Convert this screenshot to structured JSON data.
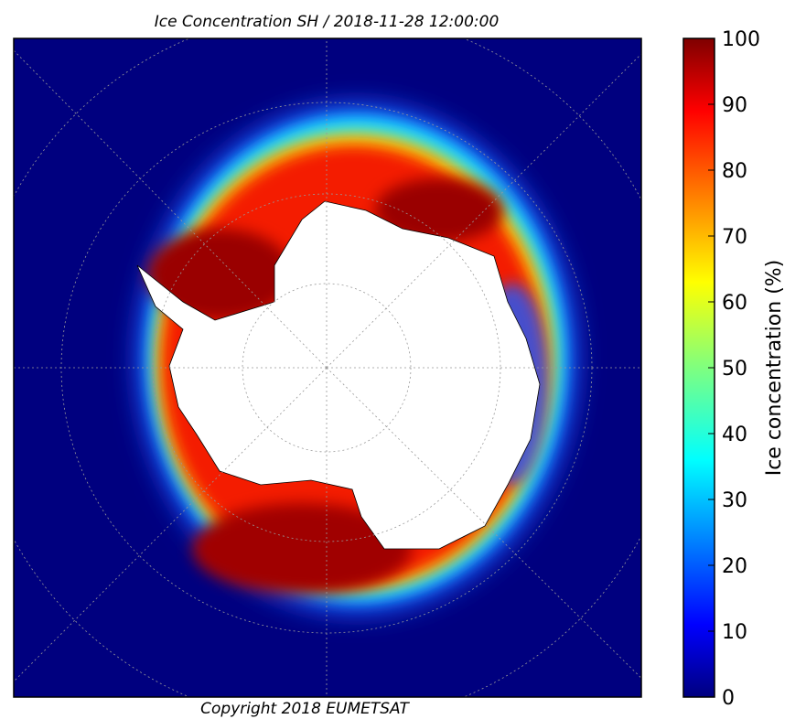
{
  "map": {
    "title": "Ice Concentration SH / 2018-11-28 12:00:00",
    "copyright": "Copyright 2018 EUMETSAT"
  },
  "colorbar": {
    "label": "Ice concentration (%)",
    "lim": [
      0,
      100
    ],
    "ticks": [
      0,
      10,
      20,
      30,
      40,
      50,
      60,
      70,
      80,
      90,
      100
    ]
  }
}
